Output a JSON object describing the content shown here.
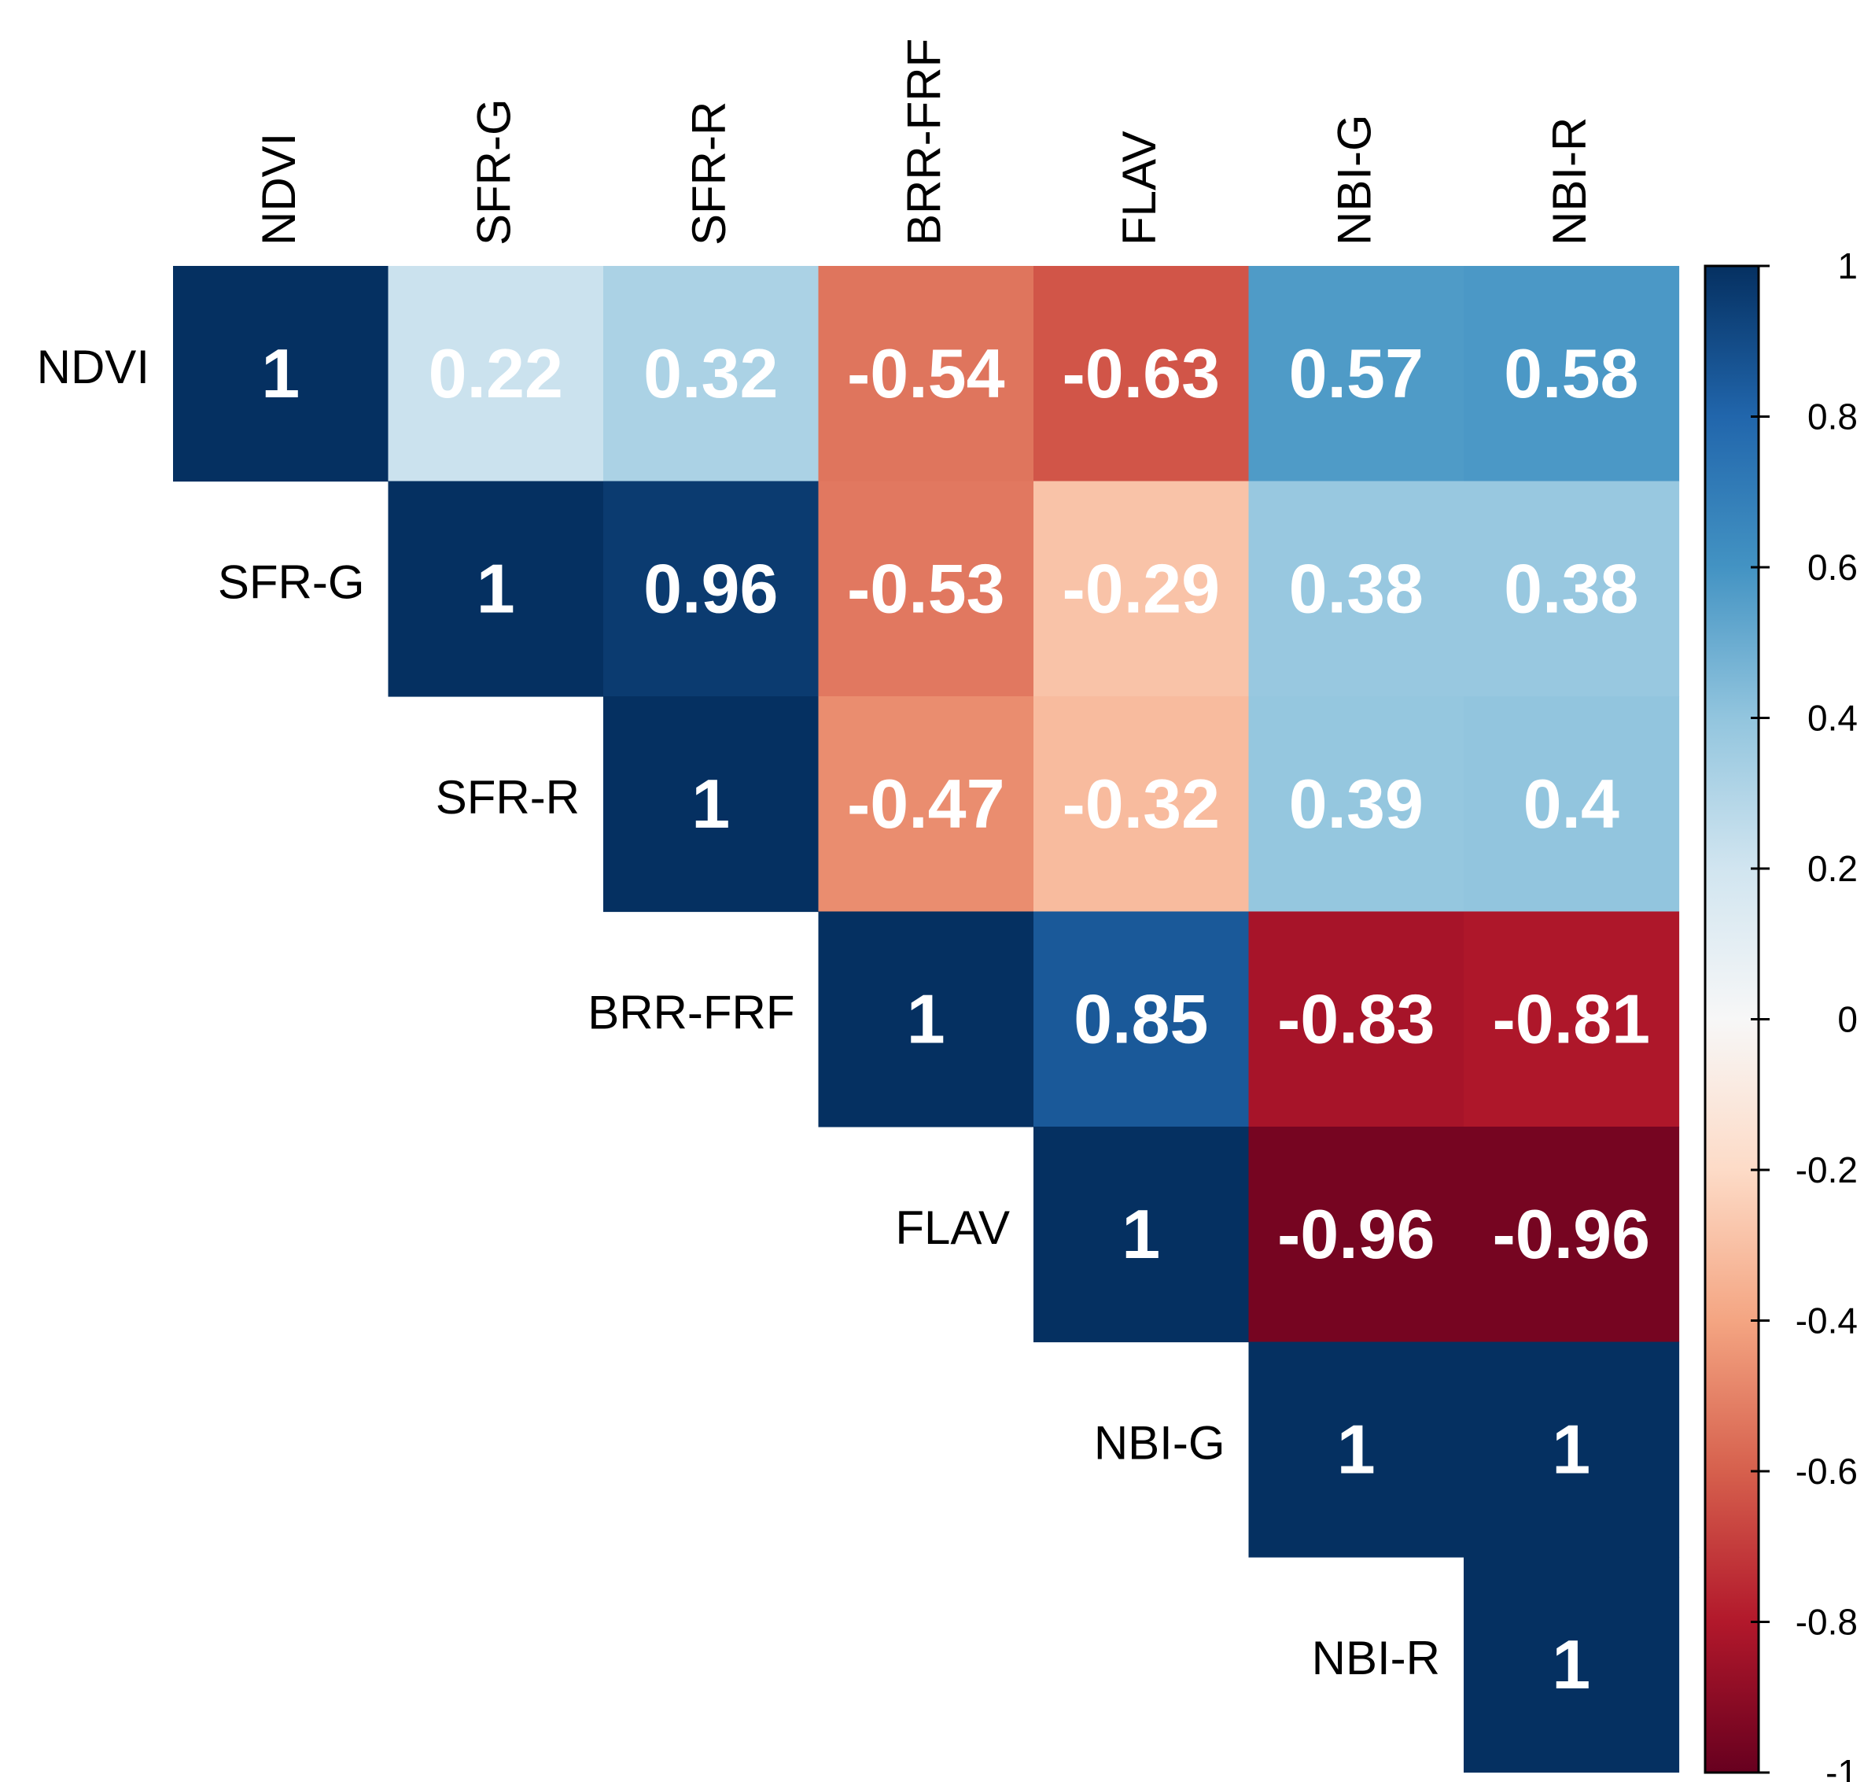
{
  "chart_data": {
    "type": "heatmap",
    "title": "",
    "variables": [
      "NDVI",
      "SFR-G",
      "SFR-R",
      "BRR-FRF",
      "FLAV",
      "NBI-G",
      "NBI-R"
    ],
    "matrix": [
      [
        1,
        0.22,
        0.32,
        -0.54,
        -0.63,
        0.57,
        0.58
      ],
      [
        null,
        1,
        0.96,
        -0.53,
        -0.29,
        0.38,
        0.38
      ],
      [
        null,
        null,
        1,
        -0.47,
        -0.32,
        0.39,
        0.4
      ],
      [
        null,
        null,
        null,
        1,
        0.85,
        -0.83,
        -0.81
      ],
      [
        null,
        null,
        null,
        null,
        1,
        -0.96,
        -0.96
      ],
      [
        null,
        null,
        null,
        null,
        null,
        1,
        1
      ],
      [
        null,
        null,
        null,
        null,
        null,
        null,
        1
      ]
    ],
    "colorbar": {
      "range": [
        -1,
        1
      ],
      "ticks": [
        1,
        0.8,
        0.6,
        0.4,
        0.2,
        0,
        -0.2,
        -0.4,
        -0.6,
        -0.8,
        -1
      ],
      "tick_labels": [
        "1",
        "0.8",
        "0.6",
        "0.4",
        "0.2",
        "0",
        "-0.2",
        "-0.4",
        "-0.6",
        "-0.8",
        "-1"
      ]
    },
    "colors": {
      "neg1": "#67001f",
      "neg08": "#b2182b",
      "neg06": "#d6604d",
      "neg04": "#f4a582",
      "neg02": "#fddbc7",
      "zero": "#f7f7f7",
      "pos02": "#d1e5f0",
      "pos04": "#92c5de",
      "pos06": "#4393c3",
      "pos08": "#2166ac",
      "pos1": "#053061"
    },
    "legend_position": "right"
  }
}
